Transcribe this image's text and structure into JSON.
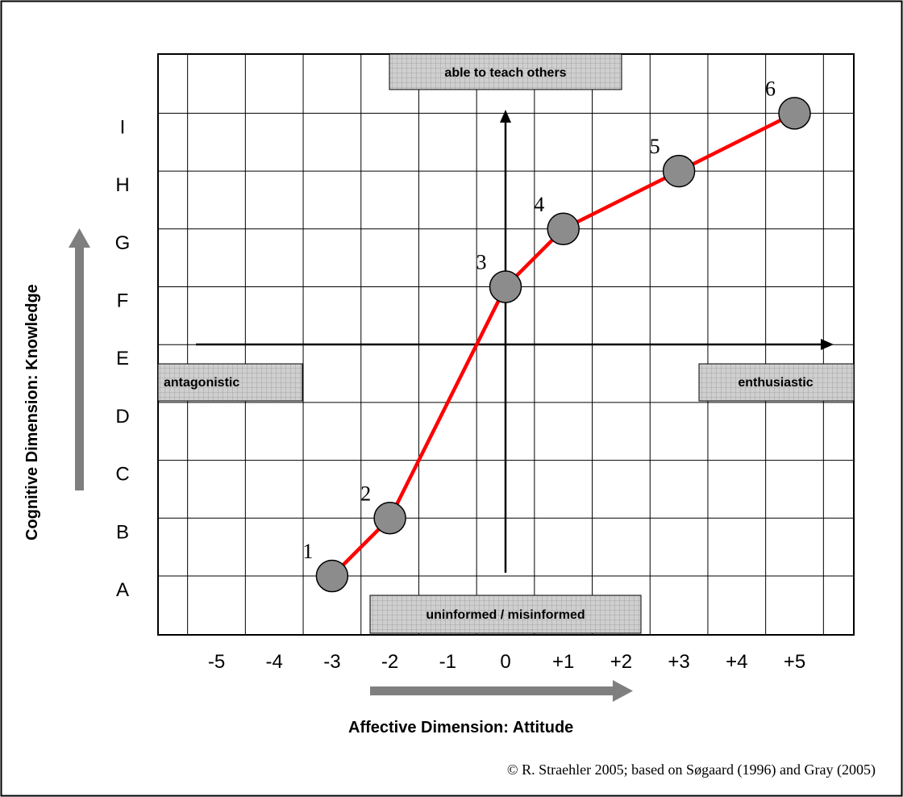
{
  "chart_data": {
    "type": "line",
    "xlabel": "Affective Dimension: Attitude",
    "ylabel": "Cognitive Dimension: Knowledge",
    "x_ticks": [
      "-5",
      "-4",
      "-3",
      "-2",
      "-1",
      "0",
      "+1",
      "+2",
      "+3",
      "+4",
      "+5"
    ],
    "y_ticks": [
      "A",
      "B",
      "C",
      "D",
      "E",
      "F",
      "G",
      "H",
      "I"
    ],
    "points": [
      {
        "label": "1",
        "x": -3,
        "y": "A"
      },
      {
        "label": "2",
        "x": -2,
        "y": "B"
      },
      {
        "label": "3",
        "x": 0,
        "y": "F"
      },
      {
        "label": "4",
        "x": 1,
        "y": "G"
      },
      {
        "label": "5",
        "x": 3,
        "y": "H"
      },
      {
        "label": "6",
        "x": 5,
        "y": "I"
      }
    ],
    "annotations": {
      "top": "able to teach others",
      "bottom": "uninformed / misinformed",
      "left": "antagonistic",
      "right": "enthusiastic"
    },
    "grid": true,
    "line_color": "#ff0000",
    "marker_color": "#8c8c8c"
  },
  "credit": "© R. Straehler 2005; based on Søgaard (1996) and Gray (2005)"
}
